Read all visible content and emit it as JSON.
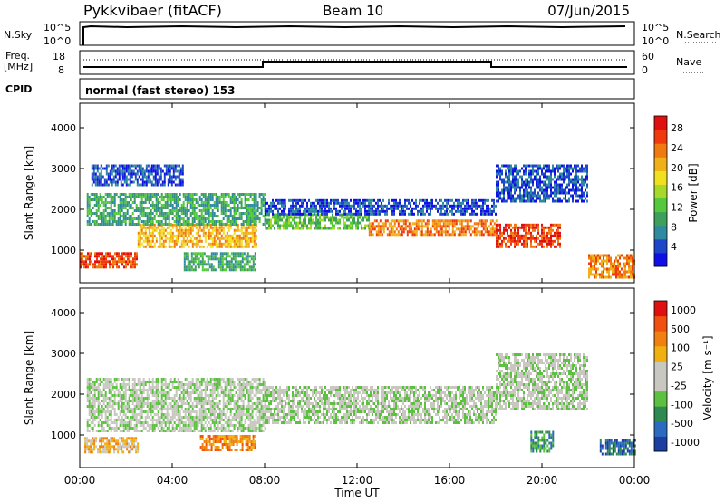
{
  "header": {
    "station": "Pykkvibaer (fitACF)",
    "beam": "Beam 10",
    "date": "07/Jun/2015"
  },
  "panels": {
    "nsky": {
      "left_label": "N.Sky",
      "ticks": [
        "10^5",
        "10^0"
      ],
      "right_label": "N.Search",
      "right_ticks": [
        "10^5",
        "10^0"
      ]
    },
    "freq": {
      "label_line1": "Freq.",
      "label_line2": "[MHz]",
      "ticks": [
        "18",
        "8"
      ],
      "right_label": "Nave",
      "right_ticks": [
        "60",
        "0"
      ]
    },
    "cpid": {
      "label": "CPID",
      "value": "normal (fast stereo) 153"
    }
  },
  "chart_data": [
    {
      "type": "heatmap",
      "name": "power",
      "ylabel": "Slant Range [km]",
      "yticks": [
        "1000",
        "2000",
        "3000",
        "4000"
      ],
      "ylim": [
        200,
        4600
      ],
      "colorbar": {
        "title": "Power [dB]",
        "ticks": [
          "4",
          "8",
          "12",
          "16",
          "20",
          "24",
          "28"
        ],
        "colors": [
          "#1010e6",
          "#1e46c8",
          "#2f8aa0",
          "#3ea05a",
          "#56c83c",
          "#a8d82a",
          "#f0e020",
          "#f0b018",
          "#f07a10",
          "#ee3a0c",
          "#e01010"
        ]
      },
      "bands": [
        {
          "t0": 0.0,
          "t1": 2.5,
          "r0": 550,
          "r1": 950,
          "level": 9
        },
        {
          "t0": 2.5,
          "t1": 7.6,
          "r0": 1100,
          "r1": 1650,
          "level": 7
        },
        {
          "t0": 0.3,
          "t1": 8.0,
          "r0": 1600,
          "r1": 2400,
          "level": 3
        },
        {
          "t0": 0.5,
          "t1": 4.5,
          "r0": 2600,
          "r1": 3100,
          "level": 1
        },
        {
          "t0": 8.0,
          "t1": 12.5,
          "r0": 1500,
          "r1": 1900,
          "level": 4
        },
        {
          "t0": 12.5,
          "t1": 18.0,
          "r0": 1350,
          "r1": 1750,
          "level": 8
        },
        {
          "t0": 8.0,
          "t1": 18.0,
          "r0": 1900,
          "r1": 2250,
          "level": 1
        },
        {
          "t0": 18.0,
          "t1": 20.8,
          "r0": 1050,
          "r1": 1650,
          "level": 9
        },
        {
          "t0": 18.0,
          "t1": 22.0,
          "r0": 2200,
          "r1": 3100,
          "level": 1
        },
        {
          "t0": 22.0,
          "t1": 24.0,
          "r0": 350,
          "r1": 900,
          "level": 8
        },
        {
          "t0": 4.5,
          "t1": 7.6,
          "r0": 500,
          "r1": 950,
          "level": 3
        }
      ]
    },
    {
      "type": "heatmap",
      "name": "velocity",
      "ylabel": "Slant Range [km]",
      "yticks": [
        "1000",
        "2000",
        "3000",
        "4000"
      ],
      "ylim": [
        200,
        4600
      ],
      "colorbar": {
        "title": "Velocity [m s⁻¹]",
        "ticks": [
          "1000",
          "500",
          "100",
          "25",
          "-25",
          "-100",
          "-500",
          "-1000"
        ],
        "colors": [
          "#1a3fa0",
          "#2c6ac0",
          "#2e8a50",
          "#5cc040",
          "#c8c8c0",
          "#c8c8c0",
          "#f0b010",
          "#f08010",
          "#f05010",
          "#e01010"
        ]
      },
      "bands": [
        {
          "t0": 0.2,
          "t1": 2.5,
          "r0": 550,
          "r1": 950,
          "level": 6
        },
        {
          "t0": 0.3,
          "t1": 8.0,
          "r0": 1100,
          "r1": 2400,
          "level": 4
        },
        {
          "t0": 5.2,
          "t1": 7.6,
          "r0": 600,
          "r1": 1000,
          "level": 7
        },
        {
          "t0": 8.0,
          "t1": 18.0,
          "r0": 1300,
          "r1": 2200,
          "level": 4
        },
        {
          "t0": 18.0,
          "t1": 22.0,
          "r0": 1600,
          "r1": 3000,
          "level": 4
        },
        {
          "t0": 19.5,
          "t1": 20.5,
          "r0": 600,
          "r1": 1100,
          "level": 2
        },
        {
          "t0": 22.5,
          "t1": 24.0,
          "r0": 500,
          "r1": 900,
          "level": 1
        }
      ]
    }
  ],
  "time_axis": {
    "label": "Time UT",
    "ticks": [
      "00:00",
      "04:00",
      "08:00",
      "12:00",
      "16:00",
      "20:00",
      "00:00"
    ],
    "range": [
      0,
      24
    ]
  }
}
